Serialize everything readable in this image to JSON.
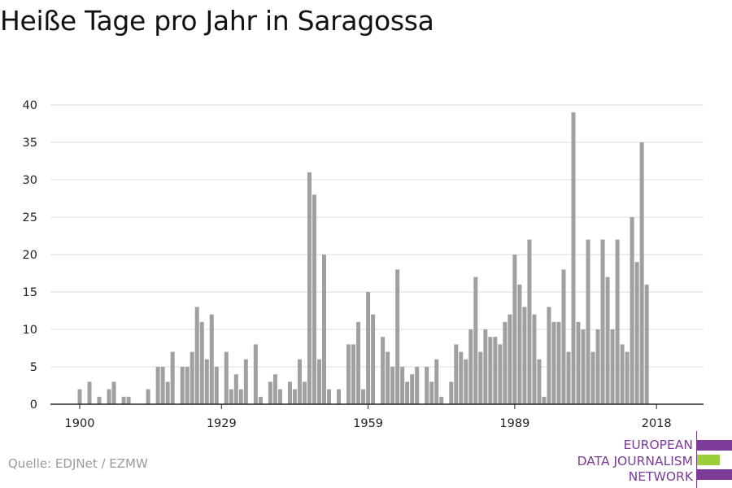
{
  "title": "Heiße Tage pro Jahr in Saragossa",
  "source": "Quelle: EDJNet / EZMW",
  "logo": {
    "lines": [
      "EUROPEAN",
      "DATA JOURNALISM",
      "NETWORK"
    ],
    "color": "#7b3b96",
    "accent_color": "#9cce3a"
  },
  "colors": {
    "bar": "#a0a0a0",
    "grid": "#dcdcdc",
    "axis": "#222222",
    "tick_text": "#222222"
  },
  "chart_data": {
    "type": "bar",
    "title": "Heiße Tage pro Jahr in Saragossa",
    "xlabel": "",
    "ylabel": "",
    "ylim": [
      0,
      40
    ],
    "yticks": [
      0,
      5,
      10,
      15,
      20,
      25,
      30,
      35,
      40
    ],
    "xticks": [
      1900,
      1929,
      1959,
      1989,
      2018
    ],
    "grid": true,
    "x_start": 1900,
    "x": [
      1900,
      1901,
      1902,
      1903,
      1904,
      1905,
      1906,
      1907,
      1908,
      1909,
      1910,
      1911,
      1912,
      1913,
      1914,
      1915,
      1916,
      1917,
      1918,
      1919,
      1920,
      1921,
      1922,
      1923,
      1924,
      1925,
      1926,
      1927,
      1928,
      1929,
      1930,
      1931,
      1932,
      1933,
      1934,
      1935,
      1936,
      1937,
      1938,
      1939,
      1940,
      1941,
      1942,
      1943,
      1944,
      1945,
      1946,
      1947,
      1948,
      1949,
      1950,
      1951,
      1952,
      1953,
      1954,
      1955,
      1956,
      1957,
      1958,
      1959,
      1960,
      1961,
      1962,
      1963,
      1964,
      1965,
      1966,
      1967,
      1968,
      1969,
      1970,
      1971,
      1972,
      1973,
      1974,
      1975,
      1976,
      1977,
      1978,
      1979,
      1980,
      1981,
      1982,
      1983,
      1984,
      1985,
      1986,
      1987,
      1988,
      1989,
      1990,
      1991,
      1992,
      1993,
      1994,
      1995,
      1996,
      1997,
      1998,
      1999,
      2000,
      2001,
      2002,
      2003,
      2004,
      2005,
      2006,
      2007,
      2008,
      2009,
      2010,
      2011,
      2012,
      2013,
      2014,
      2015,
      2016,
      2017,
      2018,
      2019
    ],
    "values": [
      2,
      0,
      3,
      0,
      1,
      0,
      2,
      3,
      0,
      1,
      1,
      0,
      0,
      0,
      2,
      0,
      5,
      5,
      3,
      7,
      0,
      5,
      5,
      7,
      13,
      11,
      6,
      12,
      5,
      0,
      7,
      2,
      4,
      2,
      6,
      0,
      8,
      1,
      0,
      3,
      4,
      2,
      0,
      3,
      2,
      6,
      3,
      31,
      28,
      6,
      20,
      2,
      0,
      2,
      0,
      8,
      8,
      11,
      2,
      15,
      12,
      0,
      9,
      7,
      5,
      18,
      5,
      3,
      4,
      5,
      0,
      5,
      3,
      6,
      1,
      0,
      3,
      8,
      7,
      6,
      10,
      17,
      7,
      10,
      9,
      9,
      8,
      11,
      12,
      20,
      16,
      13,
      22,
      12,
      6,
      1,
      13,
      11,
      11,
      18,
      7,
      39,
      11,
      10,
      22,
      7,
      10,
      22,
      17,
      10,
      22,
      8,
      7,
      25,
      19,
      35,
      16,
      0,
      0,
      0
    ]
  }
}
